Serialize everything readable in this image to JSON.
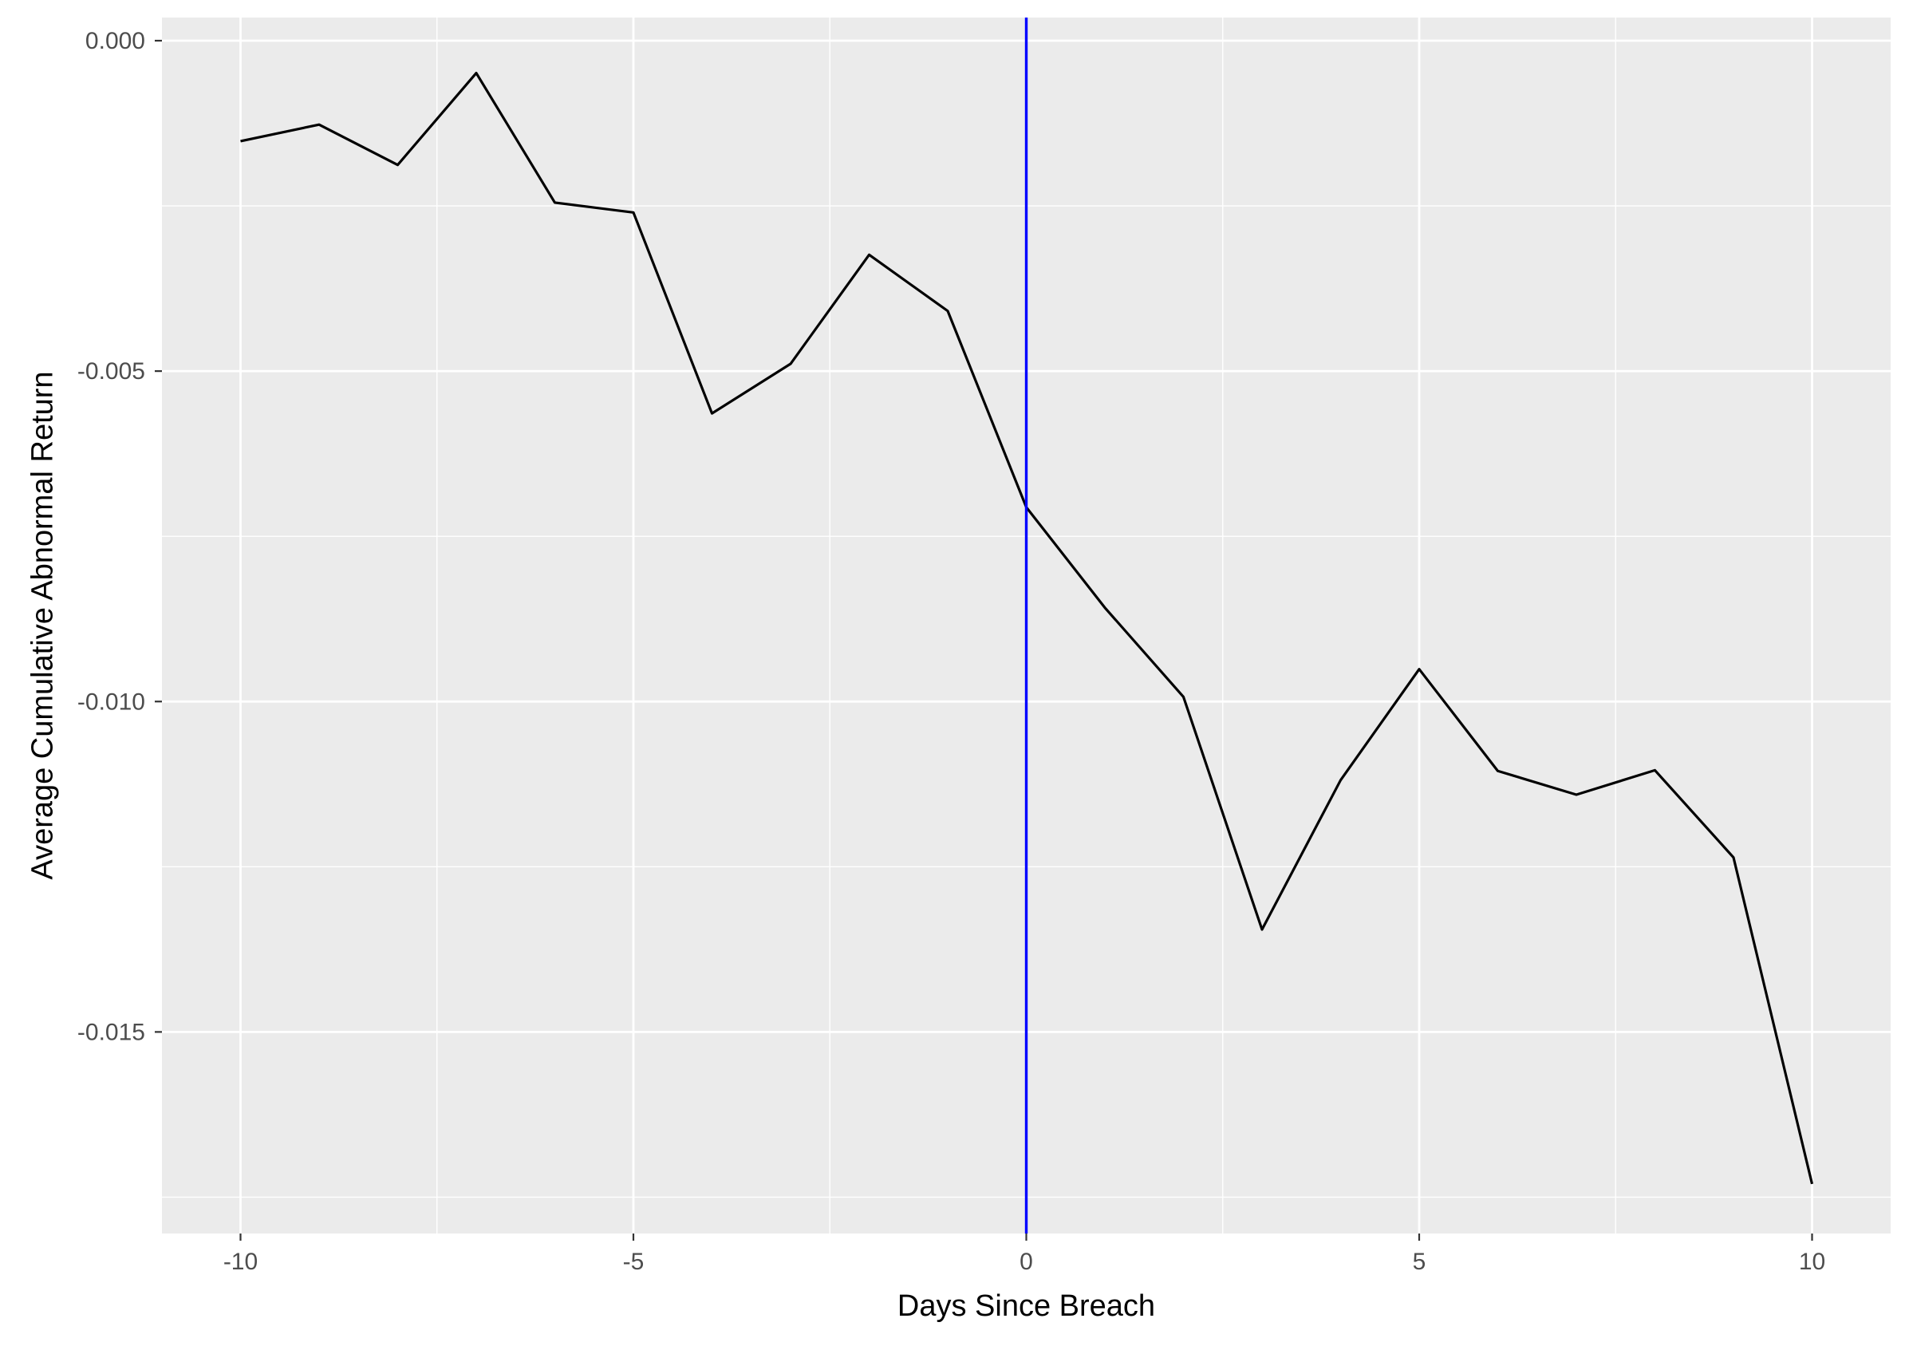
{
  "chart_data": {
    "type": "line",
    "title": "",
    "xlabel": "Days Since Breach",
    "ylabel": "Average Cumulative Abnormal Return",
    "xlim": [
      -11,
      11
    ],
    "ylim": [
      -0.01805,
      0.00035
    ],
    "x_ticks": [
      -10,
      -5,
      0,
      5,
      10
    ],
    "x_tick_labels": [
      "-10",
      "-5",
      "0",
      "5",
      "10"
    ],
    "y_ticks": [
      0.0,
      -0.005,
      -0.01,
      -0.015
    ],
    "y_tick_labels": [
      "0.000",
      "-0.005",
      "-0.010",
      "-0.015"
    ],
    "grid": true,
    "background_color": "#ebebeb",
    "grid_color": "#ffffff",
    "series": [
      {
        "color": "#000000",
        "x": [
          -10,
          -9,
          -8,
          -7,
          -6,
          -5,
          -4,
          -3,
          -2,
          -1,
          0,
          1,
          2,
          3,
          4,
          5,
          6,
          7,
          8,
          9,
          10
        ],
        "y": [
          -0.00152,
          -0.00127,
          -0.00188,
          -0.00049,
          -0.00245,
          -0.0026,
          -0.00564,
          -0.00489,
          -0.00324,
          -0.00409,
          -0.00706,
          -0.00858,
          -0.00993,
          -0.01345,
          -0.01119,
          -0.00951,
          -0.01105,
          -0.01141,
          -0.01104,
          -0.01236,
          -0.0173
        ]
      }
    ],
    "reference_lines": [
      {
        "axis": "x",
        "value": 0,
        "color": "#0000ff"
      }
    ]
  }
}
